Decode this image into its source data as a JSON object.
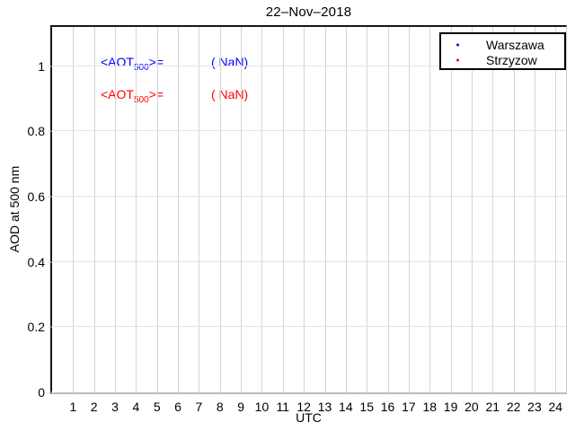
{
  "chart_data": {
    "type": "scatter",
    "title": "22–Nov–2018",
    "xlabel": "UTC",
    "ylabel": "AOD at 500 nm",
    "xlim": [
      0,
      24.5
    ],
    "ylim": [
      0,
      1.12
    ],
    "xticks": [
      1,
      2,
      3,
      4,
      5,
      6,
      7,
      8,
      9,
      10,
      11,
      12,
      13,
      14,
      15,
      16,
      17,
      18,
      19,
      20,
      21,
      22,
      23,
      24
    ],
    "xtick_labels": [
      "1",
      "2",
      "3",
      "4",
      "5",
      "6",
      "7",
      "8",
      "9",
      "10",
      "11",
      "12",
      "13",
      "14",
      "15",
      "16",
      "17",
      "18",
      "19",
      "20",
      "21",
      "22",
      "23",
      "24"
    ],
    "yticks": [
      0,
      0.2,
      0.4,
      0.6,
      0.8,
      1
    ],
    "ytick_labels": [
      "0",
      "0.2",
      "0.4",
      "0.6",
      "0.8",
      "1"
    ],
    "grid": true,
    "legend_position": "top-right",
    "series": [
      {
        "name": "Warszawa",
        "color": "#0000ff",
        "marker": "point",
        "x": [],
        "y": []
      },
      {
        "name": "Strzyzow",
        "color": "#ff0000",
        "marker": "point",
        "x": [],
        "y": []
      }
    ],
    "annotations": [
      {
        "text_prefix": "<AOT",
        "text_sub": "500",
        "text_suffix": ">=",
        "value": "( NaN)",
        "color": "#0000ff"
      },
      {
        "text_prefix": "<AOT",
        "text_sub": "500",
        "text_suffix": ">=",
        "value": "( NaN)",
        "color": "#ff0000"
      }
    ]
  }
}
